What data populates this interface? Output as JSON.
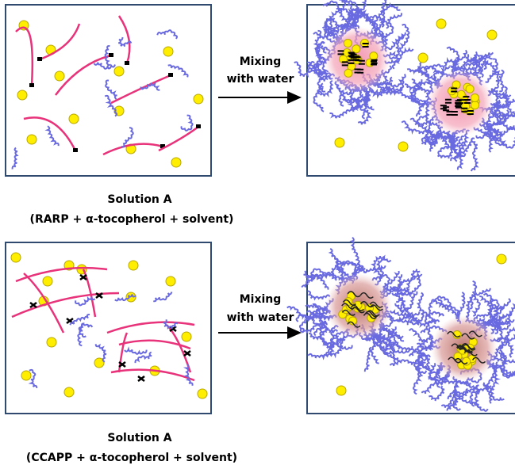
{
  "rows": [
    {
      "arrow_label": [
        "Mixing",
        "with water"
      ],
      "caption": {
        "title": "Solution A",
        "subtitle": "(RARP + α-tocopherol + solvent)"
      }
    },
    {
      "arrow_label": [
        "Mixing",
        "with water"
      ],
      "caption": {
        "title": "Solution A",
        "subtitle": "(CCAPP + α-tocopherol + solvent)"
      }
    }
  ]
}
